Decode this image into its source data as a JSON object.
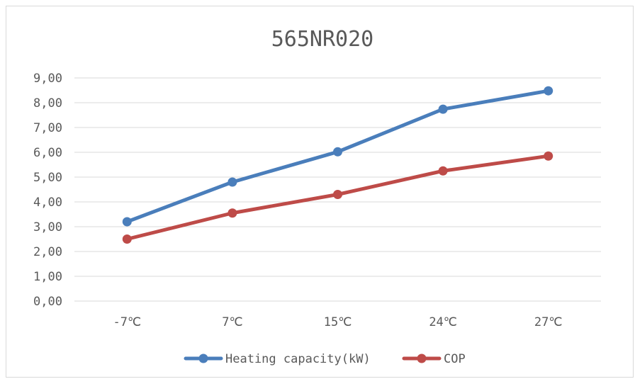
{
  "chart_data": {
    "type": "line",
    "title": "565NR020",
    "categories": [
      "-7℃",
      "7℃",
      "15℃",
      "24℃",
      "27℃"
    ],
    "ylim": [
      0,
      9
    ],
    "yticks": [
      "0,00",
      "1,00",
      "2,00",
      "3,00",
      "4,00",
      "5,00",
      "6,00",
      "7,00",
      "8,00",
      "9,00"
    ],
    "grid": true,
    "legend_position": "bottom",
    "series": [
      {
        "name": "Heating capacity(kW)",
        "color": "#4a7ebb",
        "values": [
          3.2,
          4.8,
          6.02,
          7.74,
          8.48
        ]
      },
      {
        "name": "COP",
        "color": "#be4b48",
        "values": [
          2.5,
          3.55,
          4.3,
          5.25,
          5.85
        ]
      }
    ]
  }
}
